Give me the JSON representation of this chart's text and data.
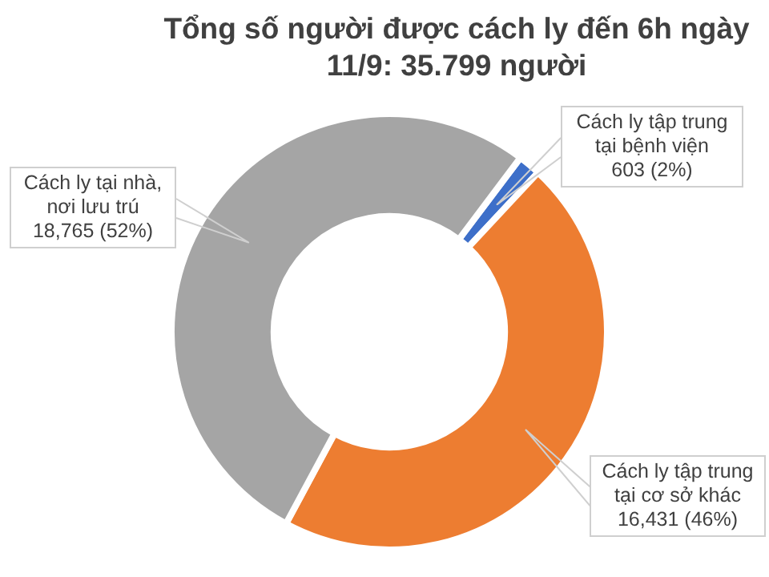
{
  "chart_data": {
    "type": "donut",
    "title": "Tổng số người được cách ly đến 6h ngày 11/9: 35.799 người",
    "categories": [
      "Cách ly tập trung tại bệnh viện",
      "Cách ly tập trung tại cơ sở khác",
      "Cách ly tại nhà, nơi lưu trú"
    ],
    "values": [
      603,
      16431,
      18765
    ],
    "colors": [
      "#3d6fc9",
      "#ed7d31",
      "#a5a5a5"
    ],
    "value_labels": [
      "603 (2%)",
      "16,431 (46%)",
      "18,765 (52%)"
    ],
    "legend": false
  }
}
